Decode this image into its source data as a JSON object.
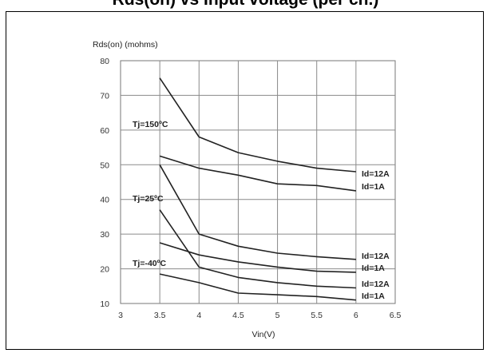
{
  "page": {
    "title": "Rds(on) vs Input voltage (per ch.)"
  },
  "chart_data": {
    "type": "line",
    "title": "",
    "xlabel": "Vin(V)",
    "ylabel": "Rds(on) (mohms)",
    "xlim": [
      3,
      6.5
    ],
    "ylim": [
      10,
      80
    ],
    "xticks": [
      "3",
      "3.5",
      "4",
      "4.5",
      "5",
      "5.5",
      "6",
      "6.5"
    ],
    "yticks": [
      "10",
      "20",
      "30",
      "40",
      "50",
      "60",
      "70",
      "80"
    ],
    "grid": true,
    "series": [
      {
        "name": "Tj=150ºC Id=12A",
        "x": [
          3.5,
          4,
          4.5,
          5,
          5.5,
          6
        ],
        "y": [
          75,
          58,
          53.5,
          51,
          49,
          48
        ]
      },
      {
        "name": "Tj=150ºC Id=1A",
        "x": [
          3.5,
          4,
          4.5,
          5,
          5.5,
          6
        ],
        "y": [
          52.5,
          49,
          47,
          44.5,
          44,
          42.5
        ]
      },
      {
        "name": "Tj=25ºC Id=12A",
        "x": [
          3.5,
          4,
          4.5,
          5,
          5.5,
          6
        ],
        "y": [
          50,
          30,
          26.5,
          24.5,
          23.5,
          22.7
        ]
      },
      {
        "name": "Tj=25ºC Id=1A",
        "x": [
          3.5,
          4,
          4.5,
          5,
          5.5,
          6
        ],
        "y": [
          37,
          20.5,
          17.5,
          16,
          15,
          14.5
        ]
      },
      {
        "name": "Tj=-40ºC Id=12A",
        "x": [
          3.5,
          4,
          4.5,
          5,
          5.5,
          6
        ],
        "y": [
          27.5,
          24,
          22,
          20.5,
          19.3,
          19
        ]
      },
      {
        "name": "Tj=-40ºC Id=1A",
        "x": [
          3.5,
          4,
          4.5,
          5,
          5.5,
          6
        ],
        "y": [
          18.5,
          16,
          13,
          12.5,
          12,
          11
        ]
      }
    ],
    "annotations": {
      "tj150": "Tj=150ºC",
      "tj25": "Tj=25ºC",
      "tjm40": "Tj=-40ºC",
      "id12a_150": "Id=12A",
      "id1a_150": "Id=1A",
      "id12a_25": "Id=12A",
      "id1a_25": "Id=1A",
      "id12a_m40": "Id=12A",
      "id1a_m40": "Id=1A"
    }
  }
}
